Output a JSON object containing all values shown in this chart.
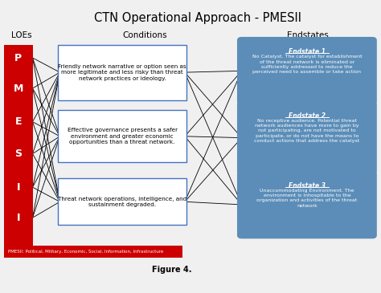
{
  "title": "CTN Operational Approach - PMESII",
  "col_headers": [
    "LOEs",
    "Conditions",
    "Endstates"
  ],
  "loe_letters": [
    "P",
    "M",
    "E",
    "S",
    "I",
    "I"
  ],
  "conditions": [
    "Friendly network narrative or option seen as\nmore legitimate and less risky than threat\nnetwork practices or ideology.",
    "Effective governance presents a safer\nenvironment and greater economic\nopportunities than a threat network.",
    "Threat network operations, intelligence, and\nsustainment degraded."
  ],
  "endstates": [
    {
      "title": "Endstate 1",
      "text": "No Catalyst. The catalyst for establishment\nof the threat network is eliminated or\nsufficiently addressed to reduce the\nperceived need to assemble or take action"
    },
    {
      "title": "Endstate 2",
      "text": "No receptive audience. Potential threat\nnetwork audiences have more to gain by\nnot participating, are not motivated to\nparticipate, or do not have the means to\nconduct actions that address the catalyst"
    },
    {
      "title": "Endstate 3",
      "text": "Unaccommodating Environment. The\nenvironment is inhospitable to the\norganization and activities of the threat\nnetwork"
    }
  ],
  "pmesii_text": "PMESII: Political, Military, Economic, Social, Information, Infrastructure",
  "figure_label": "Figure 4.",
  "loe_color": "#CC0000",
  "loe_text_color": "#FFFFFF",
  "condition_box_color": "#FFFFFF",
  "condition_border_color": "#4472C4",
  "endstate_box_color": "#5B8DB8",
  "endstate_text_color": "#FFFFFF",
  "background_color": "#F0F0F0",
  "line_color": "#000000",
  "pmesii_bar_color": "#CC0000",
  "pmesii_text_color": "#FFFFFF"
}
